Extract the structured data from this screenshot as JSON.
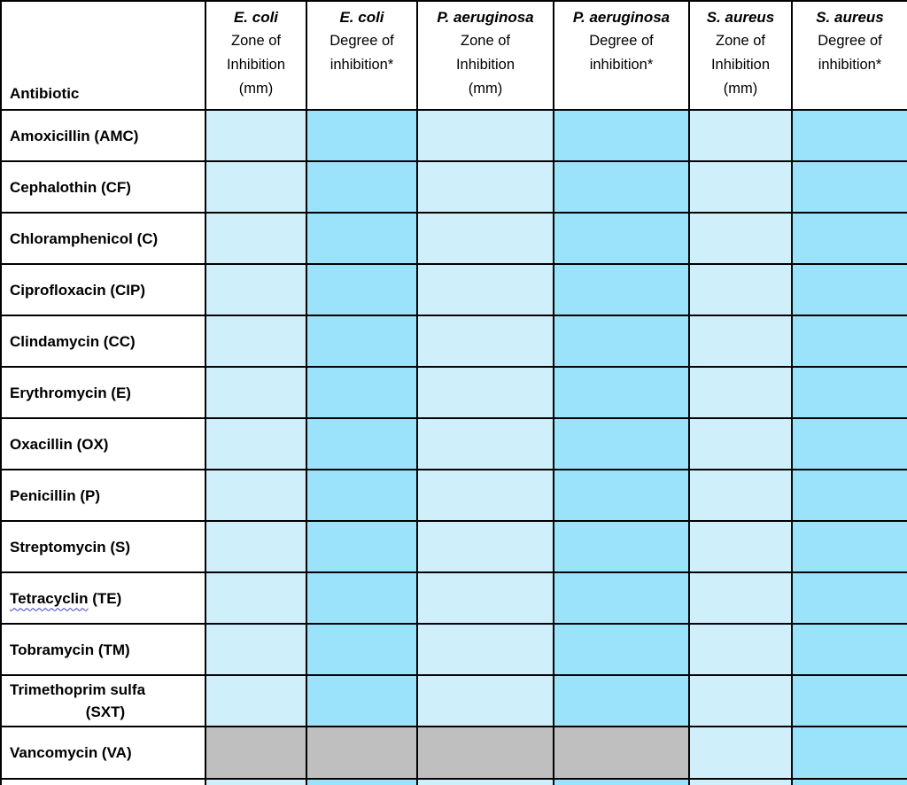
{
  "colors": {
    "zone_fill": "#CFF0FB",
    "degree_fill": "#9BE2FB",
    "na_fill": "#BFBFBF",
    "border": "#000000",
    "spellcheck_underline": "#3B3BDC"
  },
  "table": {
    "antibiotic_header": "Antibiotic",
    "columns": [
      {
        "species": "E. coli",
        "sublabel": "Zone of\nInhibition\n(mm)",
        "type": "zone"
      },
      {
        "species": "E. coli",
        "sublabel": "Degree of\ninhibition*",
        "type": "degree"
      },
      {
        "species": "P. aeruginosa",
        "sublabel": "Zone of\nInhibition\n(mm)",
        "type": "zone"
      },
      {
        "species": "P. aeruginosa",
        "sublabel": "Degree of\ninhibition*",
        "type": "degree"
      },
      {
        "species": "S. aureus",
        "sublabel": "Zone of\nInhibition\n(mm)",
        "type": "zone"
      },
      {
        "species": "S. aureus",
        "sublabel": "Degree of\ninhibition*",
        "type": "degree"
      }
    ],
    "rows": [
      {
        "label": "Amoxicillin (AMC)",
        "fills": [
          "zone",
          "degree",
          "zone",
          "degree",
          "zone",
          "degree"
        ]
      },
      {
        "label": "Cephalothin (CF)",
        "fills": [
          "zone",
          "degree",
          "zone",
          "degree",
          "zone",
          "degree"
        ]
      },
      {
        "label": "Chloramphenicol (C)",
        "fills": [
          "zone",
          "degree",
          "zone",
          "degree",
          "zone",
          "degree"
        ]
      },
      {
        "label": "Ciprofloxacin (CIP)",
        "fills": [
          "zone",
          "degree",
          "zone",
          "degree",
          "zone",
          "degree"
        ]
      },
      {
        "label": "Clindamycin (CC)",
        "fills": [
          "zone",
          "degree",
          "zone",
          "degree",
          "zone",
          "degree"
        ]
      },
      {
        "label": "Erythromycin (E)",
        "fills": [
          "zone",
          "degree",
          "zone",
          "degree",
          "zone",
          "degree"
        ]
      },
      {
        "label": "Oxacillin (OX)",
        "fills": [
          "zone",
          "degree",
          "zone",
          "degree",
          "zone",
          "degree"
        ]
      },
      {
        "label": "Penicillin (P)",
        "fills": [
          "zone",
          "degree",
          "zone",
          "degree",
          "zone",
          "degree"
        ]
      },
      {
        "label": "Streptomycin (S)",
        "fills": [
          "zone",
          "degree",
          "zone",
          "degree",
          "zone",
          "degree"
        ]
      },
      {
        "label": "Tetracyclin",
        "label_suffix": " (TE)",
        "spellcheck_underline": true,
        "fills": [
          "zone",
          "degree",
          "zone",
          "degree",
          "zone",
          "degree"
        ]
      },
      {
        "label": "Tobramycin (TM)",
        "fills": [
          "zone",
          "degree",
          "zone",
          "degree",
          "zone",
          "degree"
        ]
      },
      {
        "label": "Trimethoprim sulfa",
        "label_line2": "(SXT)",
        "fills": [
          "zone",
          "degree",
          "zone",
          "degree",
          "zone",
          "degree"
        ]
      },
      {
        "label": "Vancomycin (VA)",
        "last": true,
        "fills": [
          "gray",
          "gray",
          "gray",
          "gray",
          "zone",
          "degree"
        ]
      },
      {
        "label": "",
        "cutoff": true,
        "fills": [
          "zone",
          "degree",
          "zone",
          "degree",
          "zone",
          "degree"
        ]
      }
    ]
  }
}
